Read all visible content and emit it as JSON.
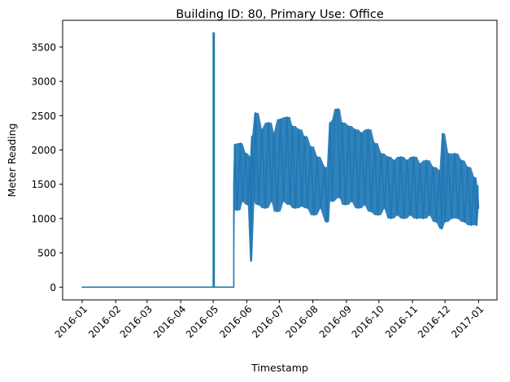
{
  "chart_data": {
    "type": "line",
    "title": "Building ID: 80, Primary Use: Office",
    "xlabel": "Timestamp",
    "ylabel": "Meter Reading",
    "x_ticks": [
      "2016-01",
      "2016-02",
      "2016-03",
      "2016-04",
      "2016-05",
      "2016-06",
      "2016-07",
      "2016-08",
      "2016-09",
      "2016-10",
      "2016-11",
      "2016-12",
      "2017-01"
    ],
    "y_ticks": [
      0,
      500,
      1000,
      1500,
      2000,
      2500,
      3000,
      3500
    ],
    "xlim": [
      "2015-12-14",
      "2017-01-18"
    ],
    "ylim": [
      -186,
      3890
    ],
    "grid": false,
    "legend": "none",
    "color": "#1f77b4",
    "series": [
      {
        "points": [
          [
            "2016-01-01",
            0
          ],
          [
            "2016-05-01",
            0
          ],
          [
            "2016-05-01",
            3710
          ],
          [
            "2016-05-02",
            3700
          ],
          [
            "2016-05-02",
            0
          ],
          [
            "2016-05-20",
            0
          ],
          [
            "2016-05-20",
            1500
          ],
          [
            "2016-05-21",
            2080
          ],
          [
            "2016-05-23",
            1120
          ],
          [
            "2016-05-26",
            2100
          ],
          [
            "2016-05-28",
            1250
          ],
          [
            "2016-05-31",
            1950
          ],
          [
            "2016-06-02",
            1200
          ],
          [
            "2016-06-04",
            1900
          ],
          [
            "2016-06-05",
            380
          ],
          [
            "2016-06-06",
            2200
          ],
          [
            "2016-06-08",
            1250
          ],
          [
            "2016-06-09",
            2540
          ],
          [
            "2016-06-12",
            1200
          ],
          [
            "2016-06-15",
            2300
          ],
          [
            "2016-06-18",
            1150
          ],
          [
            "2016-06-21",
            2400
          ],
          [
            "2016-06-24",
            1250
          ],
          [
            "2016-06-26",
            2250
          ],
          [
            "2016-06-29",
            1100
          ],
          [
            "2016-07-02",
            2450
          ],
          [
            "2016-07-05",
            1250
          ],
          [
            "2016-07-08",
            2480
          ],
          [
            "2016-07-11",
            1200
          ],
          [
            "2016-07-13",
            2350
          ],
          [
            "2016-07-16",
            1150
          ],
          [
            "2016-07-19",
            2300
          ],
          [
            "2016-07-22",
            1180
          ],
          [
            "2016-07-24",
            2200
          ],
          [
            "2016-07-27",
            1150
          ],
          [
            "2016-07-30",
            2050
          ],
          [
            "2016-08-02",
            1050
          ],
          [
            "2016-08-05",
            1900
          ],
          [
            "2016-08-08",
            1150
          ],
          [
            "2016-08-12",
            1750
          ],
          [
            "2016-08-14",
            950
          ],
          [
            "2016-08-16",
            1700
          ],
          [
            "2016-08-17",
            2400
          ],
          [
            "2016-08-19",
            1250
          ],
          [
            "2016-08-21",
            2450
          ],
          [
            "2016-08-24",
            2600
          ],
          [
            "2016-08-26",
            1300
          ],
          [
            "2016-08-28",
            2400
          ],
          [
            "2016-08-31",
            1200
          ],
          [
            "2016-09-03",
            2350
          ],
          [
            "2016-09-06",
            1250
          ],
          [
            "2016-09-09",
            2300
          ],
          [
            "2016-09-12",
            1150
          ],
          [
            "2016-09-15",
            2250
          ],
          [
            "2016-09-18",
            1200
          ],
          [
            "2016-09-21",
            2300
          ],
          [
            "2016-09-24",
            1100
          ],
          [
            "2016-09-27",
            2100
          ],
          [
            "2016-09-30",
            1050
          ],
          [
            "2016-10-03",
            1950
          ],
          [
            "2016-10-06",
            1150
          ],
          [
            "2016-10-09",
            1900
          ],
          [
            "2016-10-12",
            1000
          ],
          [
            "2016-10-15",
            1850
          ],
          [
            "2016-10-18",
            1050
          ],
          [
            "2016-10-21",
            1900
          ],
          [
            "2016-10-24",
            1000
          ],
          [
            "2016-10-27",
            1850
          ],
          [
            "2016-10-30",
            1050
          ],
          [
            "2016-11-02",
            1900
          ],
          [
            "2016-11-05",
            1000
          ],
          [
            "2016-11-08",
            1800
          ],
          [
            "2016-11-11",
            1000
          ],
          [
            "2016-11-14",
            1850
          ],
          [
            "2016-11-17",
            1050
          ],
          [
            "2016-11-20",
            1750
          ],
          [
            "2016-11-23",
            950
          ],
          [
            "2016-11-26",
            1700
          ],
          [
            "2016-11-28",
            850
          ],
          [
            "2016-11-29",
            2240
          ],
          [
            "2016-12-01",
            950
          ],
          [
            "2016-12-04",
            1950
          ],
          [
            "2016-12-07",
            1000
          ],
          [
            "2016-12-10",
            1950
          ],
          [
            "2016-12-13",
            1000
          ],
          [
            "2016-12-16",
            1850
          ],
          [
            "2016-12-19",
            950
          ],
          [
            "2016-12-22",
            1750
          ],
          [
            "2016-12-25",
            900
          ],
          [
            "2016-12-28",
            1600
          ],
          [
            "2016-12-30",
            900
          ],
          [
            "2016-12-31",
            1480
          ],
          [
            "2017-01-01",
            1150
          ]
        ]
      }
    ]
  }
}
